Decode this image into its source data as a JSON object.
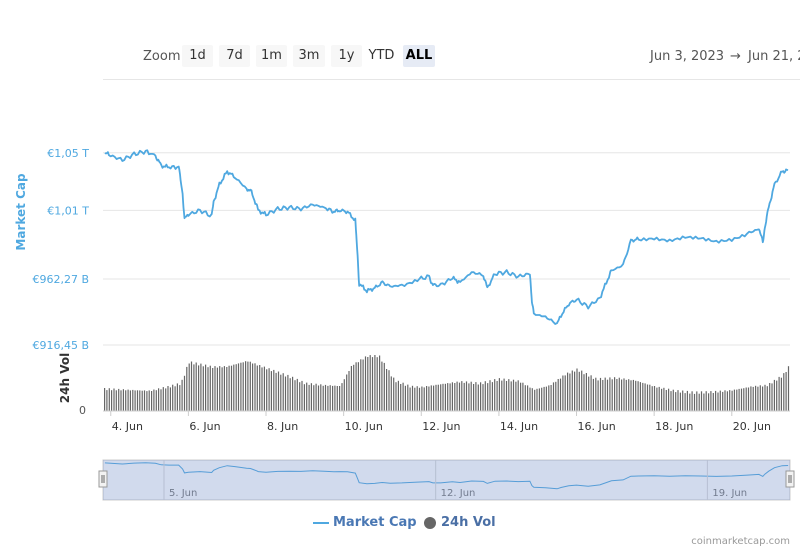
{
  "toolbar": {
    "zoom_label": "Zoom",
    "buttons": [
      "1d",
      "7d",
      "1m",
      "3m",
      "1y",
      "YTD",
      "ALL"
    ],
    "active": "ALL",
    "range_from": "Jun 3, 2023",
    "range_arrow": "→",
    "range_to": "Jun 21, 2"
  },
  "legend": {
    "market_cap": "Market Cap",
    "vol": "24h Vol"
  },
  "credit": "coinmarketcap.com",
  "chart_data": {
    "type": "line",
    "x_unit": "day of June 2023",
    "xlim": [
      3.8,
      21.5
    ],
    "x_ticks": [
      {
        "value": 4,
        "label": "4. Jun"
      },
      {
        "value": 6,
        "label": "6. Jun"
      },
      {
        "value": 8,
        "label": "8. Jun"
      },
      {
        "value": 10,
        "label": "10. Jun"
      },
      {
        "value": 12,
        "label": "12. Jun"
      },
      {
        "value": 14,
        "label": "14. Jun"
      },
      {
        "value": 16,
        "label": "16. Jun"
      },
      {
        "value": 18,
        "label": "18. Jun"
      },
      {
        "value": 20,
        "label": "20. Jun"
      }
    ],
    "y_axis": {
      "label": "Market Cap",
      "unit": "€ billions",
      "ylim": [
        916.45,
        1054.0
      ],
      "ticks": [
        {
          "value": 916.45,
          "label": "€916,45 B"
        },
        {
          "value": 962.27,
          "label": "€962,27 B"
        },
        {
          "value": 1010,
          "label": "€1,01 T"
        },
        {
          "value": 1050,
          "label": "€1,05 T"
        }
      ]
    },
    "vol_axis": {
      "label": "24h Vol",
      "ticks": [
        {
          "value": 0,
          "label": "0"
        }
      ]
    },
    "series": [
      {
        "name": "Market Cap",
        "color": "#4fa8e0",
        "x": [
          3.85,
          4.0,
          4.3,
          4.6,
          4.9,
          5.15,
          5.3,
          5.5,
          5.75,
          5.85,
          5.9,
          6.0,
          6.3,
          6.6,
          6.65,
          6.8,
          7.0,
          7.2,
          7.5,
          7.6,
          7.75,
          7.8,
          8.0,
          8.3,
          8.6,
          8.9,
          9.2,
          9.5,
          9.75,
          9.9,
          10.1,
          10.3,
          10.35,
          10.4,
          10.6,
          10.8,
          11.0,
          11.2,
          11.5,
          11.9,
          12.2,
          12.3,
          12.5,
          12.8,
          13.0,
          13.3,
          13.6,
          13.7,
          13.9,
          14.2,
          14.5,
          14.8,
          14.85,
          14.9,
          15.2,
          15.5,
          15.6,
          15.8,
          16.0,
          16.3,
          16.6,
          16.8,
          16.9,
          17.2,
          17.4,
          17.6,
          18.0,
          18.4,
          18.8,
          19.2,
          19.6,
          20.0,
          20.4,
          20.7,
          20.8,
          20.85,
          20.95,
          21.1,
          21.3,
          21.45
        ],
        "y": [
          1050,
          1048,
          1045,
          1049,
          1051,
          1048,
          1041,
          1040,
          1040,
          1022,
          1004,
          1007,
          1010,
          1006,
          1016,
          1028,
          1037,
          1033,
          1025,
          1024,
          1014,
          1010,
          1007,
          1011,
          1012,
          1011,
          1014,
          1012,
          1009,
          1010,
          1009,
          1003,
          982,
          959,
          954,
          956,
          960,
          957,
          958,
          962,
          964,
          958,
          958,
          963,
          960,
          967,
          965,
          956,
          966,
          967,
          964,
          966,
          946,
          938,
          936,
          931,
          937,
          945,
          948,
          943,
          949,
          962,
          968,
          972,
          989,
          990,
          991,
          989,
          991,
          990,
          988,
          990,
          994,
          997,
          988,
          998,
          1012,
          1028,
          1037,
          1038
        ]
      },
      {
        "name": "24h Vol",
        "color": "#666666",
        "relative_level_x": [
          3.85,
          5.0,
          5.5,
          5.8,
          6.0,
          6.6,
          7.0,
          7.5,
          8.0,
          8.6,
          9.0,
          9.5,
          9.9,
          10.2,
          10.6,
          10.9,
          11.3,
          11.7,
          12.0,
          12.5,
          13.0,
          13.5,
          14.0,
          14.5,
          14.9,
          15.3,
          15.7,
          16.0,
          16.5,
          17.0,
          17.5,
          18.0,
          18.5,
          19.0,
          19.5,
          20.0,
          20.5,
          20.9,
          21.3,
          21.45
        ],
        "relative_level": [
          0.36,
          0.33,
          0.4,
          0.45,
          0.8,
          0.72,
          0.73,
          0.82,
          0.7,
          0.56,
          0.45,
          0.42,
          0.41,
          0.75,
          0.9,
          0.9,
          0.5,
          0.4,
          0.39,
          0.44,
          0.48,
          0.45,
          0.52,
          0.49,
          0.35,
          0.42,
          0.6,
          0.68,
          0.52,
          0.54,
          0.5,
          0.4,
          0.33,
          0.3,
          0.31,
          0.34,
          0.4,
          0.42,
          0.58,
          0.72
        ]
      }
    ],
    "navigator": {
      "ticks": [
        {
          "value": 5,
          "label": "5. Jun"
        },
        {
          "value": 12,
          "label": "12. Jun"
        },
        {
          "value": 19,
          "label": "19. Jun"
        }
      ]
    }
  }
}
